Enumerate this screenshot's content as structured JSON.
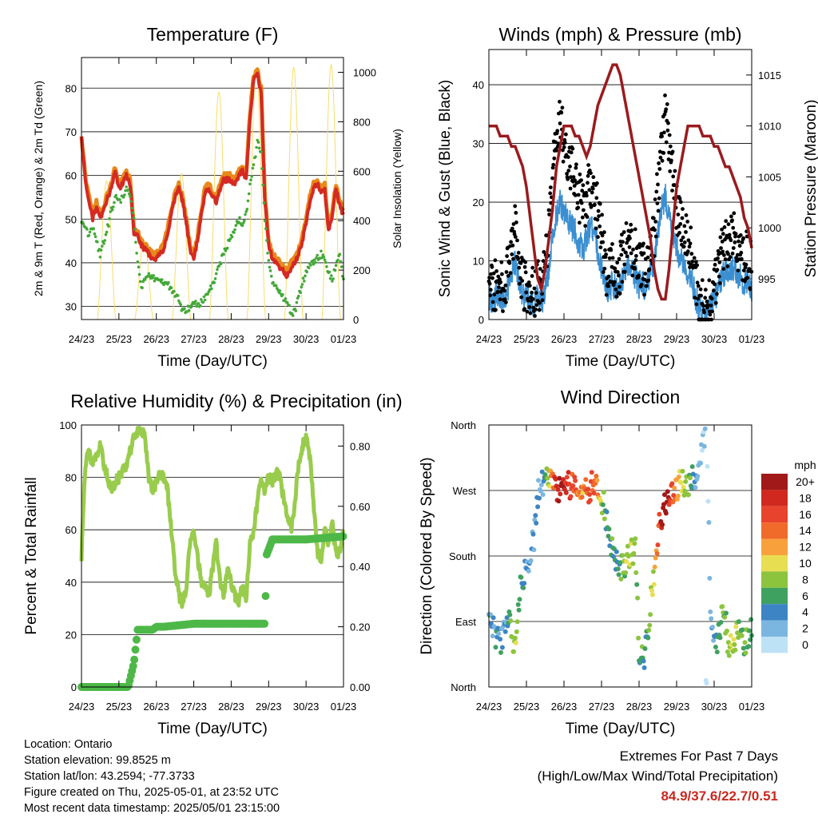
{
  "colors": {
    "t2m": "#e8891a",
    "t9m": "#d42a22",
    "td": "#43a838",
    "solar": "#f7dd6a",
    "wind": "#3b8fd1",
    "gust": "#000000",
    "pressure": "#9a1b1e",
    "rh": "#99cc4d",
    "precip": "#4db848",
    "extremes": "#c8281e"
  },
  "time_ticks": [
    "24/23",
    "25/23",
    "26/23",
    "27/23",
    "28/23",
    "29/23",
    "30/23",
    "01/23"
  ],
  "xlabel": "Time (Day/UTC)",
  "chart_data": [
    {
      "id": "temperature",
      "type": "line",
      "title": "Temperature (F)",
      "ylabel": "2m & 9m T (Red, Orange) & 2m Td (Green)",
      "y2label": "Solar Insolation (Yellow)",
      "ylim": [
        27,
        87
      ],
      "yticks": [
        30,
        40,
        50,
        60,
        70,
        80
      ],
      "y2lim": [
        0,
        1060
      ],
      "y2ticks": [
        0,
        200,
        400,
        600,
        800,
        1000
      ],
      "x_days": [
        0,
        0.1,
        0.2,
        0.3,
        0.4,
        0.5,
        0.6,
        0.7,
        0.8,
        0.9,
        1.0,
        1.1,
        1.2,
        1.3,
        1.4,
        1.5,
        1.6,
        1.7,
        1.8,
        1.9,
        2.0,
        2.1,
        2.2,
        2.3,
        2.4,
        2.5,
        2.6,
        2.7,
        2.8,
        2.9,
        3.0,
        3.1,
        3.2,
        3.3,
        3.4,
        3.5,
        3.6,
        3.7,
        3.8,
        3.9,
        4.0,
        4.1,
        4.2,
        4.3,
        4.4,
        4.5,
        4.6,
        4.7,
        4.8,
        4.9,
        5.0,
        5.1,
        5.2,
        5.3,
        5.4,
        5.5,
        5.6,
        5.7,
        5.8,
        5.9,
        6.0,
        6.1,
        6.2,
        6.3,
        6.4,
        6.5,
        6.6,
        6.7,
        6.8,
        6.9,
        7.0
      ],
      "series": [
        {
          "name": "2m T",
          "values": [
            69,
            60,
            55,
            51,
            54,
            51,
            53,
            56,
            58,
            62,
            58,
            59,
            61,
            59,
            48,
            47,
            45,
            44,
            43,
            42,
            42,
            43,
            44,
            48,
            52,
            56,
            58,
            55,
            50,
            44,
            42,
            46,
            52,
            57,
            58,
            56,
            55,
            58,
            60,
            60,
            60,
            59,
            61,
            62,
            60,
            74,
            83,
            84,
            80,
            55,
            45,
            42,
            41,
            40,
            39,
            38,
            40,
            41,
            43,
            46,
            50,
            55,
            58,
            59,
            57,
            58,
            48,
            52,
            58,
            54,
            52
          ]
        },
        {
          "name": "9m T",
          "values": [
            69,
            59,
            54,
            50,
            53,
            50,
            52,
            55,
            57,
            61,
            57,
            58,
            60,
            58,
            47,
            46,
            44,
            43,
            42,
            41,
            41,
            42,
            43,
            47,
            51,
            55,
            57,
            54,
            49,
            43,
            41,
            45,
            51,
            56,
            57,
            55,
            54,
            57,
            59,
            59,
            59,
            58,
            60,
            61,
            59,
            73,
            82,
            83,
            79,
            54,
            44,
            41,
            40,
            39,
            38,
            37,
            39,
            40,
            42,
            45,
            49,
            54,
            57,
            58,
            56,
            57,
            47,
            51,
            57,
            53,
            51
          ]
        },
        {
          "name": "2m Td",
          "values": [
            50,
            48,
            46,
            48,
            45,
            42,
            45,
            48,
            52,
            55,
            54,
            55,
            57,
            55,
            50,
            40,
            34,
            36,
            37,
            37,
            36,
            36,
            35,
            35,
            34,
            33,
            32,
            29,
            29,
            30,
            31,
            30,
            31,
            32,
            33,
            35,
            37,
            40,
            42,
            44,
            46,
            48,
            50,
            49,
            51,
            58,
            62,
            68,
            65,
            50,
            40,
            36,
            34,
            33,
            32,
            31,
            28,
            29,
            32,
            35,
            38,
            40,
            40,
            41,
            42,
            41,
            38,
            36,
            40,
            42,
            36
          ]
        }
      ],
      "solar_series": {
        "name": "Solar Insolation",
        "days": [
          0,
          1,
          2,
          3,
          4,
          5,
          6
        ],
        "peaks": [
          560,
          320,
          590,
          920,
          1010,
          1020,
          1030
        ]
      }
    },
    {
      "id": "winds",
      "type": "line",
      "title": "Winds (mph) & Pressure (mb)",
      "ylabel": "Sonic Wind & Gust (Blue, Black)",
      "y2label": "Station Pressure (Maroon)",
      "ylim": [
        0,
        46
      ],
      "yticks": [
        0,
        10,
        20,
        30,
        40
      ],
      "y2lim": [
        991.0,
        1017.5
      ],
      "y2ticks": [
        995,
        1000,
        1005,
        1010,
        1015
      ],
      "x_days": [
        0,
        0.1,
        0.2,
        0.3,
        0.4,
        0.5,
        0.6,
        0.7,
        0.8,
        0.9,
        1.0,
        1.1,
        1.2,
        1.3,
        1.4,
        1.5,
        1.6,
        1.7,
        1.8,
        1.9,
        2.0,
        2.1,
        2.2,
        2.3,
        2.4,
        2.5,
        2.6,
        2.7,
        2.8,
        2.9,
        3.0,
        3.1,
        3.2,
        3.3,
        3.4,
        3.5,
        3.6,
        3.7,
        3.8,
        3.9,
        4.0,
        4.1,
        4.2,
        4.3,
        4.4,
        4.5,
        4.6,
        4.7,
        4.8,
        4.9,
        5.0,
        5.1,
        5.2,
        5.3,
        5.4,
        5.5,
        5.6,
        5.7,
        5.8,
        5.9,
        6.0,
        6.1,
        6.2,
        6.3,
        6.4,
        6.5,
        6.6,
        6.7,
        6.8,
        6.9,
        7.0
      ],
      "series": [
        {
          "name": "Sonic Wind",
          "values": [
            4,
            3,
            4,
            4,
            3,
            5,
            8,
            10,
            7,
            4,
            4,
            3,
            2,
            4,
            3,
            5,
            9,
            15,
            18,
            20,
            18,
            17,
            16,
            15,
            13,
            12,
            14,
            16,
            15,
            12,
            9,
            6,
            5,
            6,
            5,
            6,
            8,
            9,
            8,
            7,
            6,
            6,
            5,
            8,
            10,
            15,
            19,
            21,
            18,
            15,
            12,
            10,
            9,
            8,
            7,
            4,
            2,
            1,
            1,
            2,
            3,
            5,
            7,
            8,
            8,
            9,
            8,
            7,
            6,
            7,
            5
          ]
        },
        {
          "name": "Gust",
          "values": [
            6,
            5,
            6,
            6,
            5,
            8,
            13,
            16,
            11,
            6,
            6,
            5,
            4,
            6,
            5,
            9,
            15,
            25,
            30,
            35,
            30,
            28,
            26,
            24,
            21,
            19,
            21,
            24,
            22,
            18,
            14,
            9,
            8,
            9,
            8,
            9,
            12,
            14,
            12,
            11,
            9,
            9,
            8,
            12,
            15,
            22,
            28,
            36,
            30,
            24,
            19,
            16,
            14,
            13,
            11,
            7,
            4,
            3,
            2,
            3,
            5,
            8,
            11,
            13,
            13,
            14,
            13,
            11,
            10,
            11,
            8
          ]
        },
        {
          "name": "Station Pressure",
          "values": [
            1010,
            1010,
            1010,
            1009,
            1009,
            1009,
            1008,
            1008,
            1007,
            1006,
            1004,
            1001,
            998,
            995,
            994,
            996,
            999,
            1002,
            1006,
            1008,
            1010,
            1010,
            1010,
            1009,
            1009,
            1008,
            1007,
            1008,
            1010,
            1012,
            1013,
            1014,
            1015,
            1016,
            1016,
            1015,
            1013,
            1011,
            1009,
            1007,
            1005,
            1003,
            1001,
            999,
            996,
            994,
            993,
            993,
            996,
            1000,
            1004,
            1006,
            1008,
            1010,
            1010,
            1010,
            1010,
            1009,
            1009,
            1009,
            1008,
            1008,
            1007,
            1006,
            1006,
            1005,
            1004,
            1003,
            1001,
            1000,
            998
          ]
        }
      ]
    },
    {
      "id": "humidity",
      "type": "line",
      "title": "Relative Humidity (%) & Precipitation (in)",
      "ylabel": "Percent & Total Rainfall",
      "ylim": [
        0,
        100
      ],
      "yticks": [
        0,
        20,
        40,
        60,
        80,
        100
      ],
      "y2lim": [
        0,
        0.87
      ],
      "y2ticks": [
        "0.00",
        "0.20",
        "0.40",
        "0.60",
        "0.80"
      ],
      "x_days": [
        0,
        0.1,
        0.2,
        0.3,
        0.4,
        0.5,
        0.6,
        0.7,
        0.8,
        0.9,
        1.0,
        1.1,
        1.2,
        1.3,
        1.4,
        1.5,
        1.6,
        1.7,
        1.8,
        1.9,
        2.0,
        2.1,
        2.2,
        2.3,
        2.4,
        2.5,
        2.6,
        2.7,
        2.8,
        2.9,
        3.0,
        3.1,
        3.2,
        3.3,
        3.4,
        3.5,
        3.6,
        3.7,
        3.8,
        3.9,
        4.0,
        4.1,
        4.2,
        4.3,
        4.4,
        4.5,
        4.6,
        4.7,
        4.8,
        4.9,
        5.0,
        5.1,
        5.2,
        5.3,
        5.4,
        5.5,
        5.6,
        5.7,
        5.8,
        5.9,
        6.0,
        6.1,
        6.2,
        6.3,
        6.4,
        6.5,
        6.6,
        6.7,
        6.8,
        6.9,
        7.0
      ],
      "series": [
        {
          "name": "Relative Humidity",
          "values": [
            50,
            85,
            90,
            85,
            88,
            92,
            85,
            80,
            75,
            78,
            80,
            82,
            85,
            90,
            95,
            97,
            98,
            95,
            80,
            75,
            78,
            82,
            80,
            75,
            60,
            45,
            35,
            32,
            38,
            55,
            60,
            50,
            40,
            38,
            35,
            45,
            55,
            40,
            35,
            45,
            40,
            35,
            33,
            38,
            34,
            55,
            60,
            70,
            80,
            75,
            80,
            78,
            82,
            80,
            72,
            65,
            60,
            70,
            85,
            92,
            95,
            88,
            70,
            52,
            48,
            60,
            55,
            62,
            50,
            52,
            62
          ]
        },
        {
          "name": "Total Precipitation",
          "days": [
            0,
            1.25,
            1.4,
            1.5,
            1.9,
            2.0,
            2.2,
            3.0,
            4.0,
            4.9,
            4.95,
            5.1,
            6.0,
            7.0
          ],
          "values": [
            0,
            0,
            0.08,
            0.19,
            0.19,
            0.2,
            0.2,
            0.21,
            0.21,
            0.21,
            0.44,
            0.49,
            0.49,
            0.5
          ]
        }
      ]
    },
    {
      "id": "direction",
      "type": "scatter",
      "title": "Wind Direction",
      "ylabel": "Direction (Colored By Speed)",
      "yticks": [
        "North",
        "East",
        "South",
        "West",
        "North"
      ],
      "ylim": [
        0,
        360
      ],
      "x_days": [
        0,
        0.1,
        0.2,
        0.3,
        0.4,
        0.5,
        0.6,
        0.7,
        0.8,
        0.9,
        1.0,
        1.1,
        1.2,
        1.3,
        1.4,
        1.5,
        1.6,
        1.7,
        1.8,
        1.9,
        2.0,
        2.1,
        2.2,
        2.3,
        2.4,
        2.5,
        2.6,
        2.7,
        2.8,
        2.9,
        3.0,
        3.1,
        3.2,
        3.3,
        3.4,
        3.5,
        3.6,
        3.7,
        3.8,
        3.9,
        4.0,
        4.1,
        4.2,
        4.3,
        4.4,
        4.5,
        4.6,
        4.7,
        4.8,
        4.9,
        5.0,
        5.1,
        5.2,
        5.3,
        5.4,
        5.5,
        5.6,
        5.7,
        5.8,
        5.9,
        6.0,
        6.1,
        6.2,
        6.3,
        6.4,
        6.5,
        6.6,
        6.7,
        6.8,
        6.9,
        7.0
      ],
      "direction_deg": [
        120,
        90,
        70,
        60,
        80,
        100,
        70,
        65,
        120,
        150,
        170,
        185,
        200,
        260,
        280,
        290,
        280,
        275,
        265,
        270,
        275,
        280,
        275,
        275,
        270,
        265,
        270,
        275,
        275,
        270,
        262,
        240,
        210,
        180,
        175,
        160,
        170,
        175,
        185,
        195,
        50,
        35,
        60,
        110,
        160,
        210,
        235,
        250,
        260,
        270,
        275,
        280,
        275,
        280,
        282,
        290,
        300,
        330,
        360,
        120,
        70,
        60,
        100,
        90,
        50,
        60,
        70,
        80,
        60,
        70,
        90
      ],
      "speed": [
        4,
        3,
        4,
        4,
        3,
        5,
        8,
        10,
        7,
        4,
        4,
        3,
        2,
        4,
        3,
        5,
        9,
        15,
        18,
        20,
        18,
        17,
        16,
        15,
        13,
        12,
        14,
        16,
        15,
        12,
        9,
        6,
        5,
        6,
        5,
        6,
        8,
        9,
        8,
        7,
        6,
        6,
        5,
        8,
        10,
        15,
        19,
        21,
        18,
        15,
        12,
        10,
        9,
        8,
        7,
        4,
        2,
        1,
        1,
        2,
        3,
        5,
        7,
        8,
        8,
        9,
        8,
        7,
        6,
        7,
        5
      ],
      "legend": {
        "title": "mph",
        "labels": [
          "20+",
          "18",
          "16",
          "14",
          "12",
          "10",
          "8",
          "6",
          "4",
          "2",
          "0"
        ],
        "colors": [
          "#a11919",
          "#d0281e",
          "#e8432c",
          "#f06a2a",
          "#f8a13c",
          "#e8de52",
          "#8cc43e",
          "#3fa160",
          "#3d84c4",
          "#7bb6e0",
          "#bde2f6"
        ]
      }
    }
  ],
  "info": {
    "location": "Location: Ontario",
    "elevation": "Station elevation: 99.8525 m",
    "latlon": "Station lat/lon: 43.2594; -77.3733",
    "created": "Figure created on Thu, 2025-05-01, at 23:52 UTC",
    "recent": "Most recent data timestamp: 2025/05/01 23:15:00"
  },
  "extremes": {
    "title": "Extremes For Past 7 Days",
    "subtitle": "(High/Low/Max Wind/Total Precipitation)",
    "values": "84.9/37.6/22.7/0.51"
  }
}
